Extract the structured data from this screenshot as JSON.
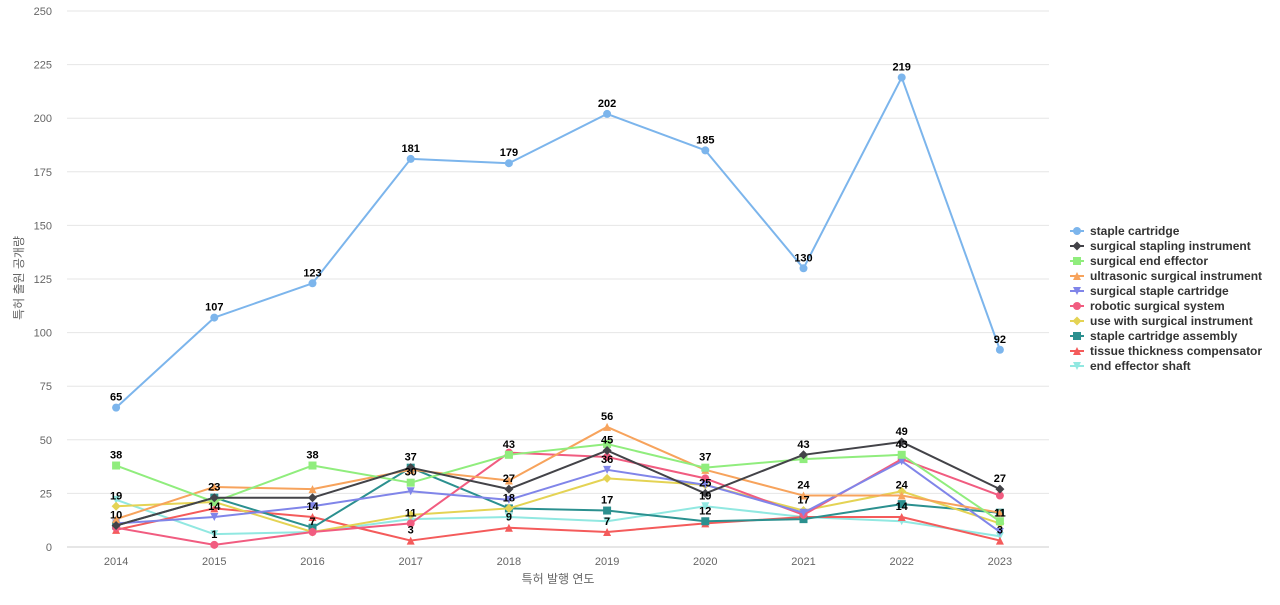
{
  "chart_data": {
    "type": "line",
    "title": "",
    "xlabel": "특허 발행 연도",
    "ylabel": "특허 출원 공개량",
    "ylim": [
      0,
      250
    ],
    "yticks": [
      0,
      25,
      50,
      75,
      100,
      125,
      150,
      175,
      200,
      225,
      250
    ],
    "x": [
      2014,
      2015,
      2016,
      2017,
      2018,
      2019,
      2020,
      2021,
      2022,
      2023
    ],
    "grid": true,
    "legend_position": "right",
    "series": [
      {
        "name": "staple cartridge",
        "color": "#7cb5ec",
        "marker": "circle",
        "values": [
          65,
          107,
          123,
          181,
          179,
          202,
          185,
          130,
          219,
          92
        ],
        "labeled": true
      },
      {
        "name": "surgical stapling instrument",
        "color": "#434348",
        "marker": "diamond",
        "values": [
          10,
          23,
          23,
          37,
          27,
          45,
          25,
          43,
          49,
          27
        ],
        "labeled": true
      },
      {
        "name": "surgical end effector",
        "color": "#90ed7d",
        "marker": "square",
        "values": [
          38,
          21,
          38,
          30,
          43,
          48,
          37,
          41,
          43,
          12
        ],
        "labeled": false
      },
      {
        "name": "ultrasonic surgical instrument",
        "color": "#f7a35c",
        "marker": "triangle",
        "values": [
          13,
          28,
          27,
          36,
          31,
          56,
          36,
          24,
          24,
          16
        ],
        "labeled": false
      },
      {
        "name": "surgical staple cartridge",
        "color": "#8085e9",
        "marker": "triangle-down",
        "values": [
          11,
          14,
          19,
          26,
          22,
          36,
          29,
          16,
          40,
          7
        ],
        "labeled": false
      },
      {
        "name": "robotic surgical system",
        "color": "#f15c80",
        "marker": "circle",
        "values": [
          9,
          1,
          7,
          11,
          44,
          42,
          32,
          15,
          41,
          24
        ],
        "labeled": false
      },
      {
        "name": "use with surgical instrument",
        "color": "#e4d354",
        "marker": "diamond",
        "values": [
          19,
          21,
          7,
          15,
          18,
          32,
          29,
          17,
          26,
          11
        ],
        "labeled": false
      },
      {
        "name": "staple cartridge assembly",
        "color": "#2b908f",
        "marker": "square",
        "values": [
          10,
          23,
          9,
          37,
          18,
          17,
          12,
          13,
          20,
          16
        ],
        "labeled": false
      },
      {
        "name": "tissue thickness compensator",
        "color": "#f45b5b",
        "marker": "triangle",
        "values": [
          8,
          18,
          14,
          3,
          9,
          7,
          11,
          14,
          14,
          3
        ],
        "labeled": false
      },
      {
        "name": "end effector shaft",
        "color": "#91e8e1",
        "marker": "triangle-down",
        "values": [
          22,
          6,
          7,
          13,
          14,
          12,
          19,
          14,
          12,
          5
        ],
        "labeled": false
      }
    ],
    "data_labels": [
      {
        "x": 2014,
        "y": 38,
        "text": "38"
      },
      {
        "x": 2014,
        "y": 19,
        "text": "19"
      },
      {
        "x": 2014,
        "y": 10,
        "text": "10"
      },
      {
        "x": 2015,
        "y": 23,
        "text": "23"
      },
      {
        "x": 2015,
        "y": 14,
        "text": "14"
      },
      {
        "x": 2015,
        "y": 1,
        "text": "1"
      },
      {
        "x": 2016,
        "y": 38,
        "text": "38"
      },
      {
        "x": 2016,
        "y": 14,
        "text": "14"
      },
      {
        "x": 2016,
        "y": 7,
        "text": "7"
      },
      {
        "x": 2017,
        "y": 37,
        "text": "37"
      },
      {
        "x": 2017,
        "y": 30,
        "text": "30"
      },
      {
        "x": 2017,
        "y": 11,
        "text": "11"
      },
      {
        "x": 2017,
        "y": 3,
        "text": "3"
      },
      {
        "x": 2018,
        "y": 43,
        "text": "43"
      },
      {
        "x": 2018,
        "y": 27,
        "text": "27"
      },
      {
        "x": 2018,
        "y": 18,
        "text": "18"
      },
      {
        "x": 2018,
        "y": 9,
        "text": "9"
      },
      {
        "x": 2019,
        "y": 56,
        "text": "56"
      },
      {
        "x": 2019,
        "y": 45,
        "text": "45"
      },
      {
        "x": 2019,
        "y": 36,
        "text": "36"
      },
      {
        "x": 2019,
        "y": 17,
        "text": "17"
      },
      {
        "x": 2019,
        "y": 7,
        "text": "7"
      },
      {
        "x": 2020,
        "y": 37,
        "text": "37"
      },
      {
        "x": 2020,
        "y": 25,
        "text": "25"
      },
      {
        "x": 2020,
        "y": 19,
        "text": "19"
      },
      {
        "x": 2020,
        "y": 12,
        "text": "12"
      },
      {
        "x": 2021,
        "y": 43,
        "text": "43"
      },
      {
        "x": 2021,
        "y": 24,
        "text": "24"
      },
      {
        "x": 2021,
        "y": 17,
        "text": "17"
      },
      {
        "x": 2022,
        "y": 49,
        "text": "49"
      },
      {
        "x": 2022,
        "y": 43,
        "text": "43"
      },
      {
        "x": 2022,
        "y": 24,
        "text": "24"
      },
      {
        "x": 2022,
        "y": 14,
        "text": "14"
      },
      {
        "x": 2023,
        "y": 27,
        "text": "27"
      },
      {
        "x": 2023,
        "y": 11,
        "text": "11"
      },
      {
        "x": 2023,
        "y": 3,
        "text": "3"
      }
    ]
  }
}
